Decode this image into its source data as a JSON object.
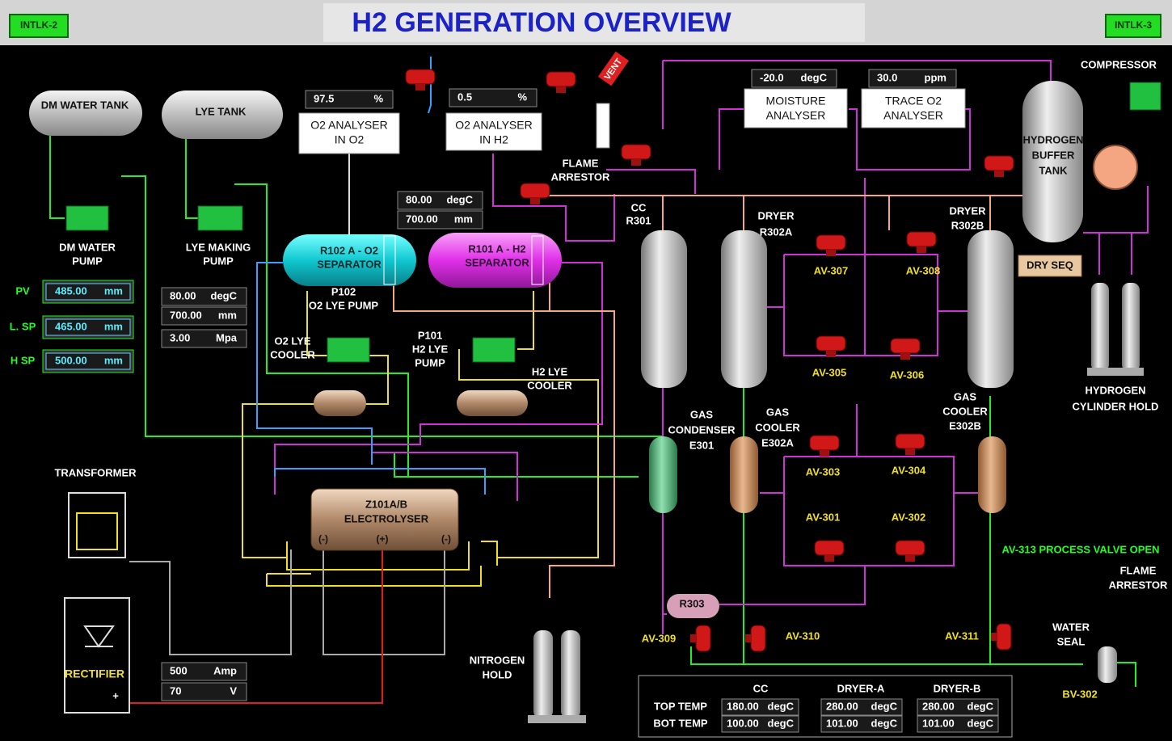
{
  "header": {
    "title": "H2 GENERATION OVERVIEW",
    "interlock_left": "INTLK-2",
    "interlock_right": "INTLK-3"
  },
  "tanks": [
    "DM WATER TANK",
    "LYE TANK"
  ],
  "pumps": {
    "dm_water": [
      "DM WATER",
      "PUMP"
    ],
    "lye_making": [
      "LYE MAKING",
      "PUMP"
    ],
    "o2_lye": [
      "P102",
      "O2 LYE PUMP"
    ],
    "h2_lye": [
      "P101",
      "H2 LYE",
      "PUMP"
    ]
  },
  "level": [
    {
      "label": "PV",
      "value": "485.00",
      "unit": "mm"
    },
    {
      "label": "L. SP",
      "value": "465.00",
      "unit": "mm"
    },
    {
      "label": "H SP",
      "value": "500.00",
      "unit": "mm"
    }
  ],
  "o2_separator": {
    "name": [
      "R102 A - O2",
      "SEPARATOR"
    ],
    "readings": [
      {
        "value": "80.00",
        "unit": "degC"
      },
      {
        "value": "700.00",
        "unit": "mm"
      },
      {
        "value": "3.00",
        "unit": "Mpa"
      }
    ]
  },
  "h2_separator": {
    "name": [
      "R101 A - H2",
      "SEPARATOR"
    ],
    "readings": [
      {
        "value": "80.00",
        "unit": "degC"
      },
      {
        "value": "700.00",
        "unit": "mm"
      }
    ]
  },
  "analysers": [
    {
      "name": [
        "O2 ANALYSER",
        "IN O2"
      ],
      "value": "97.5",
      "unit": "%"
    },
    {
      "name": [
        "O2 ANALYSER",
        "IN H2"
      ],
      "value": "0.5",
      "unit": "%"
    },
    {
      "name": [
        "MOISTURE",
        "ANALYSER"
      ],
      "value": "-20.0",
      "unit": "degC"
    },
    {
      "name": [
        "TRACE O2",
        "ANALYSER"
      ],
      "value": "30.0",
      "unit": "ppm"
    }
  ],
  "coolers": {
    "o2": [
      "O2 LYE",
      "COOLER"
    ],
    "h2": [
      "H2 LYE",
      "COOLER"
    ]
  },
  "electrolyser": {
    "name": [
      "Z101A/B",
      "ELECTROLYSER"
    ],
    "terminals": [
      "(-)",
      "(+)",
      "(-)"
    ]
  },
  "power": {
    "transformer": "TRANSFORMER",
    "rectifier": "RECTIFIER",
    "polarity": "+",
    "current": {
      "value": "500",
      "unit": "Amp"
    },
    "voltage": {
      "value": "70",
      "unit": "V"
    }
  },
  "vent": "VENT",
  "flame_arrestor": [
    "FLAME",
    "ARRESTOR"
  ],
  "nitrogen": [
    "NITROGEN",
    "HOLD"
  ],
  "dryers": {
    "cc": [
      "CC",
      "R301"
    ],
    "a": [
      "DRYER",
      "R302A"
    ],
    "b": [
      "DRYER",
      "R302B"
    ]
  },
  "gas_coolers": {
    "condenser": [
      "GAS",
      "CONDENSER",
      "E301"
    ],
    "a": [
      "GAS",
      "COOLER",
      "E302A"
    ],
    "b": [
      "GAS",
      "COOLER",
      "E302B"
    ]
  },
  "valves": [
    "AV-307",
    "AV-308",
    "AV-305",
    "AV-306",
    "AV-303",
    "AV-304",
    "AV-301",
    "AV-302",
    "AV-309",
    "AV-310",
    "AV-311"
  ],
  "r303": "R303",
  "buffer_tank": [
    "HYDROGEN",
    "BUFFER",
    "TANK"
  ],
  "compressor": "COMPRESSOR",
  "dry_seq": "DRY SEQ",
  "cylinder_hold": [
    "HYDROGEN",
    "CYLINDER HOLD"
  ],
  "status": "AV-313 PROCESS VALVE OPEN",
  "outlet": {
    "flame_arrestor": [
      "FLAME",
      "ARRESTOR"
    ],
    "water_seal": [
      "WATER",
      "SEAL"
    ],
    "valve": "BV-302"
  },
  "temperatures": {
    "columns": [
      "CC",
      "DRYER-A",
      "DRYER-B"
    ],
    "rows": [
      {
        "label": "TOP TEMP",
        "values": [
          "180.00",
          "280.00",
          "280.00"
        ],
        "unit": "degC"
      },
      {
        "label": "BOT TEMP",
        "values": [
          "100.00",
          "101.00",
          "101.00"
        ],
        "unit": "degC"
      }
    ]
  }
}
